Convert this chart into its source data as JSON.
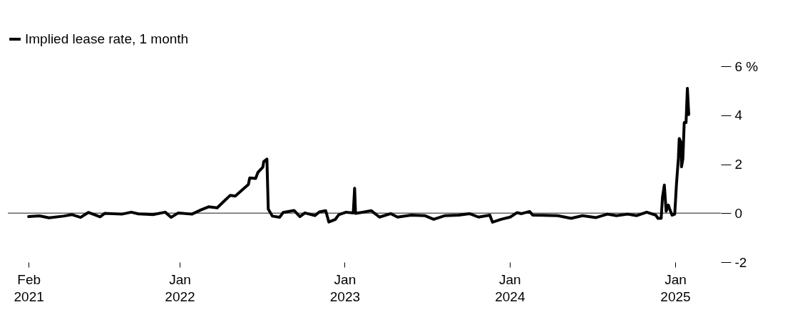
{
  "chart_data": {
    "type": "line",
    "x": [
      "2021-02-01",
      "2021-02-25",
      "2021-03-18",
      "2021-04-19",
      "2021-05-08",
      "2021-05-27",
      "2021-06-13",
      "2021-07-09",
      "2021-07-19",
      "2021-08-26",
      "2021-09-16",
      "2021-10-02",
      "2021-11-03",
      "2021-11-30",
      "2021-12-13",
      "2021-12-29",
      "2022-01-28",
      "2022-02-18",
      "2022-03-06",
      "2022-03-25",
      "2022-04-07",
      "2022-04-23",
      "2022-05-04",
      "2022-05-20",
      "2022-06-02",
      "2022-06-05",
      "2022-06-18",
      "2022-06-23",
      "2022-07-04",
      "2022-07-06",
      "2022-07-13",
      "2022-07-16",
      "2022-07-25",
      "2022-08-10",
      "2022-08-18",
      "2022-09-11",
      "2022-09-24",
      "2022-10-05",
      "2022-10-27",
      "2022-11-06",
      "2022-11-20",
      "2022-11-27",
      "2022-12-11",
      "2022-12-19",
      "2023-01-04",
      "2023-01-20",
      "2023-01-23",
      "2023-01-25",
      "2023-03-01",
      "2023-03-19",
      "2023-04-13",
      "2023-04-28",
      "2023-05-28",
      "2023-06-27",
      "2023-07-17",
      "2023-08-11",
      "2023-09-10",
      "2023-10-04",
      "2023-10-24",
      "2023-11-18",
      "2023-11-24",
      "2023-12-13",
      "2024-01-02",
      "2024-01-17",
      "2024-01-27",
      "2024-02-14",
      "2024-02-21",
      "2024-04-16",
      "2024-05-16",
      "2024-06-10",
      "2024-07-10",
      "2024-08-04",
      "2024-08-24",
      "2024-09-18",
      "2024-10-08",
      "2024-10-30",
      "2024-11-19",
      "2024-11-24",
      "2024-12-01",
      "2024-12-04",
      "2024-12-08",
      "2024-12-12",
      "2024-12-17",
      "2024-12-20",
      "2024-12-25",
      "2024-12-31",
      "2025-01-04",
      "2025-01-08",
      "2025-01-10",
      "2025-01-14",
      "2025-01-15",
      "2025-01-18",
      "2025-01-21",
      "2025-01-25",
      "2025-01-28",
      "2025-01-31"
    ],
    "series": [
      {
        "name": "Implied lease rate, 1 month",
        "color": "#000000",
        "values": [
          -0.14,
          -0.11,
          -0.19,
          -0.12,
          -0.06,
          -0.17,
          0.03,
          -0.15,
          -0.01,
          -0.04,
          0.04,
          -0.03,
          -0.06,
          0.04,
          -0.17,
          0.01,
          -0.04,
          0.14,
          0.26,
          0.22,
          0.45,
          0.73,
          0.7,
          0.96,
          1.17,
          1.44,
          1.42,
          1.66,
          1.88,
          2.11,
          2.21,
          0.17,
          -0.12,
          -0.17,
          0.03,
          0.11,
          -0.14,
          0.01,
          -0.1,
          0.05,
          0.1,
          -0.36,
          -0.26,
          -0.06,
          0.04,
          0.01,
          1.02,
          -0.01,
          0.1,
          -0.16,
          -0.02,
          -0.16,
          -0.08,
          -0.1,
          -0.25,
          -0.1,
          -0.08,
          -0.02,
          -0.16,
          -0.08,
          -0.37,
          -0.25,
          -0.16,
          0.02,
          -0.02,
          0.07,
          -0.08,
          -0.1,
          -0.21,
          -0.1,
          -0.18,
          -0.04,
          -0.1,
          -0.04,
          -0.1,
          0.04,
          -0.08,
          -0.21,
          -0.21,
          0.66,
          1.15,
          0.08,
          0.33,
          0.16,
          -0.08,
          -0.04,
          1.23,
          2.22,
          3.05,
          2.88,
          1.89,
          2.22,
          3.7,
          3.7,
          5.1,
          4.03
        ]
      }
    ],
    "xlim": [
      "2020-12-17",
      "2025-04-12"
    ],
    "xticks": [
      {
        "value": "2021-02-01",
        "label": "Feb 2021"
      },
      {
        "value": "2022-01-01",
        "label": "Jan 2022"
      },
      {
        "value": "2023-01-01",
        "label": "Jan 2023"
      },
      {
        "value": "2024-01-01",
        "label": "Jan 2024"
      },
      {
        "value": "2025-01-01",
        "label": "Jan 2025"
      }
    ],
    "ylim": [
      -2,
      6
    ],
    "yticks": [
      {
        "value": -2,
        "label": "-2"
      },
      {
        "value": 0,
        "label": "0"
      },
      {
        "value": 2,
        "label": "2"
      },
      {
        "value": 4,
        "label": "4"
      },
      {
        "value": 6,
        "label": "6 %"
      }
    ],
    "ref_lines": [
      {
        "axis": "y",
        "value": 0,
        "color": "#666666"
      }
    ],
    "legend": "top left",
    "grid": false,
    "line_style": "solid"
  }
}
